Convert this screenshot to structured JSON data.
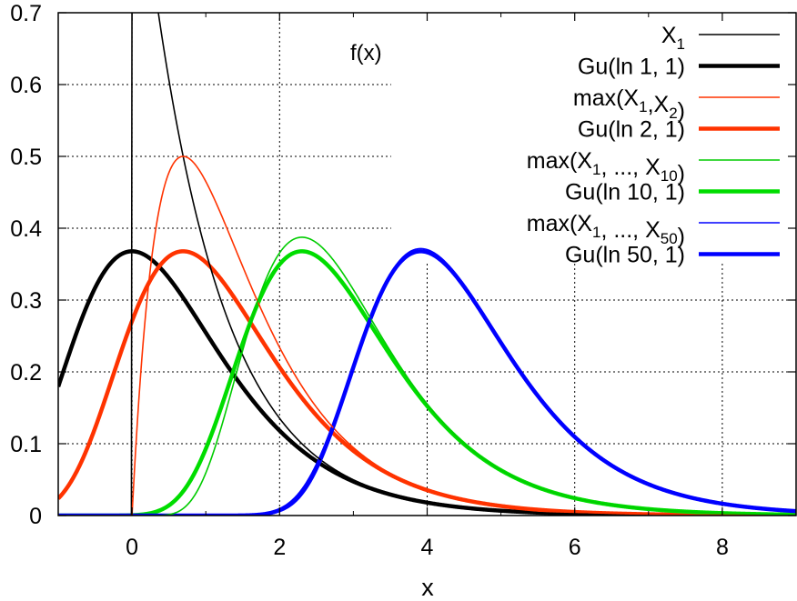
{
  "chart_data": {
    "type": "line",
    "title": "",
    "xlabel": "x",
    "ylabel": "",
    "xlim": [
      -1,
      9
    ],
    "ylim": [
      0,
      0.7
    ],
    "grid": true,
    "legend_position": "top-right",
    "annotation": "f(x)",
    "x_ticks": [
      0,
      2,
      4,
      6,
      8
    ],
    "y_ticks": [
      0,
      0.1,
      0.2,
      0.3,
      0.4,
      0.5,
      0.6,
      0.7
    ],
    "x_tick_labels": [
      "0",
      "2",
      "4",
      "6",
      "8"
    ],
    "y_tick_labels": [
      "0",
      "0.1",
      "0.2",
      "0.3",
      "0.4",
      "0.5",
      "0.6",
      "0.7"
    ],
    "series": [
      {
        "name": "X_1",
        "legend_main": "X",
        "legend_sub": "1",
        "legend_tail": "",
        "dist": "max_exp",
        "n": 1,
        "color": "#000000",
        "weight": "thin"
      },
      {
        "name": "Gu(ln 1, 1)",
        "legend_main": "Gu(ln 1, 1)",
        "dist": "gumbel",
        "n": 1,
        "color": "#000000",
        "weight": "thick"
      },
      {
        "name": "max(X_1,X_2)",
        "legend_main": "max(X",
        "legend_sub": "1",
        "legend_mid": ",X",
        "legend_sub2": "2",
        "legend_tail": ")",
        "dist": "max_exp",
        "n": 2,
        "color": "#ff3300",
        "weight": "thin"
      },
      {
        "name": "Gu(ln 2, 1)",
        "legend_main": "Gu(ln 2, 1)",
        "dist": "gumbel",
        "n": 2,
        "color": "#ff3300",
        "weight": "thick"
      },
      {
        "name": "max(X_1, ..., X_10)",
        "legend_main": "max(X",
        "legend_sub": "1",
        "legend_mid": ", ..., X",
        "legend_sub2": "10",
        "legend_tail": ")",
        "dist": "max_exp",
        "n": 10,
        "color": "#00cc00",
        "weight": "thin"
      },
      {
        "name": "Gu(ln 10, 1)",
        "legend_main": "Gu(ln 10, 1)",
        "dist": "gumbel",
        "n": 10,
        "color": "#00dd00",
        "weight": "thick"
      },
      {
        "name": "max(X_1, ..., X_50)",
        "legend_main": "max(X",
        "legend_sub": "1",
        "legend_mid": ", ..., X",
        "legend_sub2": "50",
        "legend_tail": ")",
        "dist": "max_exp",
        "n": 50,
        "color": "#0000ff",
        "weight": "thin"
      },
      {
        "name": "Gu(ln 50, 1)",
        "legend_main": "Gu(ln 50, 1)",
        "dist": "gumbel",
        "n": 50,
        "color": "#0000ff",
        "weight": "thick"
      }
    ]
  }
}
